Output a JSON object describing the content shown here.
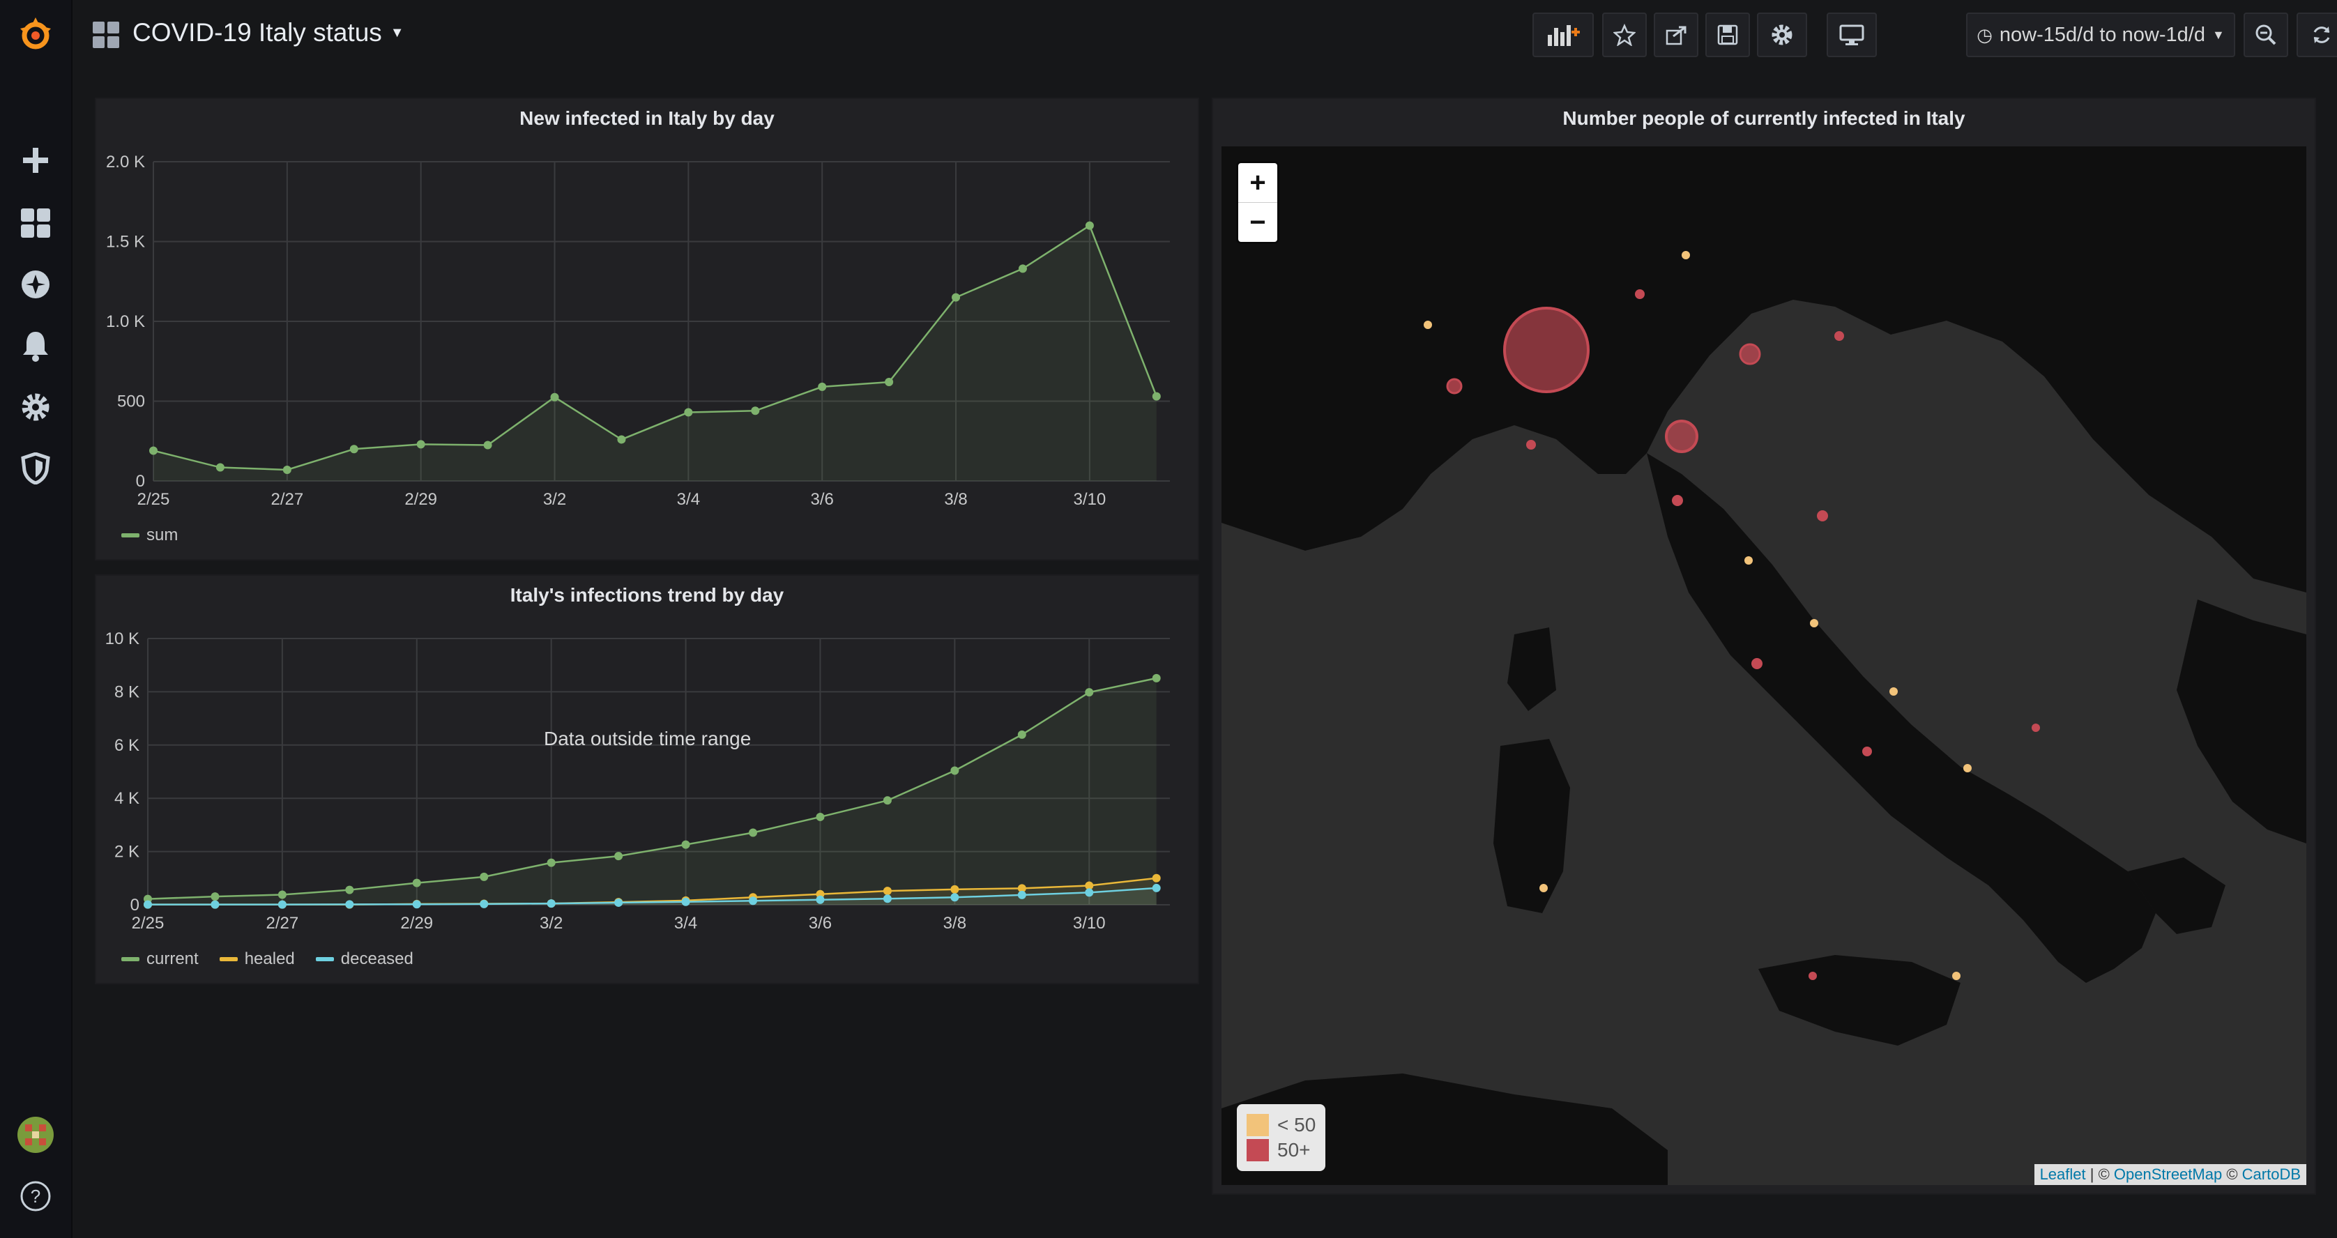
{
  "topbar": {
    "title": "COVID-19 Italy status",
    "time_range": "now-15d/d to now-1d/d"
  },
  "panel_new": {
    "title": "New infected in Italy by day",
    "legend": [
      "sum"
    ]
  },
  "panel_trend": {
    "title": "Italy's infections trend by day",
    "overlay_text": "Data outside time range",
    "legend": [
      "current",
      "healed",
      "deceased"
    ]
  },
  "panel_map": {
    "title": "Number people of currently infected in Italy",
    "zoom_in": "+",
    "zoom_out": "−",
    "legend_low": "< 50",
    "legend_high": "50+",
    "attrib_leaflet": "Leaflet",
    "attrib_sep": " | © ",
    "attrib_osm": "OpenStreetMap",
    "attrib_and": " © ",
    "attrib_carto": "CartoDB",
    "colors": {
      "low": "#f2c37a",
      "high": "#c44a54"
    }
  },
  "chart_data": [
    {
      "type": "area",
      "title": "New infected in Italy by day",
      "x": [
        "2/25",
        "2/26",
        "2/27",
        "2/28",
        "2/29",
        "3/1",
        "3/2",
        "3/3",
        "3/4",
        "3/5",
        "3/6",
        "3/7",
        "3/8",
        "3/9",
        "3/10",
        "3/11"
      ],
      "x_ticks": [
        "2/25",
        "2/27",
        "2/29",
        "3/2",
        "3/4",
        "3/6",
        "3/8",
        "3/10"
      ],
      "y_ticks": [
        "0",
        "500",
        "1.0 K",
        "1.5 K",
        "2.0 K"
      ],
      "ylim": [
        0,
        2000
      ],
      "series": [
        {
          "name": "sum",
          "color": "#7eb26d",
          "values": [
            190,
            85,
            70,
            200,
            230,
            225,
            525,
            260,
            430,
            440,
            590,
            620,
            1150,
            1330,
            1600,
            530
          ]
        }
      ]
    },
    {
      "type": "area",
      "title": "Italy's infections trend by day",
      "x": [
        "2/25",
        "2/26",
        "2/27",
        "2/28",
        "2/29",
        "3/1",
        "3/2",
        "3/3",
        "3/4",
        "3/5",
        "3/6",
        "3/7",
        "3/8",
        "3/9",
        "3/10",
        "3/11"
      ],
      "x_ticks": [
        "2/25",
        "2/27",
        "2/29",
        "3/2",
        "3/4",
        "3/6",
        "3/8",
        "3/10"
      ],
      "y_ticks": [
        "0",
        "2 K",
        "4 K",
        "6 K",
        "8 K",
        "10 K"
      ],
      "ylim": [
        0,
        10000
      ],
      "series": [
        {
          "name": "current",
          "color": "#7eb26d",
          "values": [
            220,
            310,
            380,
            560,
            820,
            1050,
            1580,
            1830,
            2260,
            2710,
            3300,
            3920,
            5040,
            6390,
            7980,
            8510
          ]
        },
        {
          "name": "healed",
          "color": "#eab839",
          "values": [
            10,
            10,
            10,
            10,
            30,
            40,
            50,
            100,
            160,
            280,
            400,
            520,
            580,
            620,
            720,
            1000
          ]
        },
        {
          "name": "deceased",
          "color": "#6ed0e0",
          "values": [
            10,
            10,
            10,
            15,
            20,
            30,
            50,
            80,
            110,
            150,
            190,
            230,
            280,
            370,
            460,
            630
          ]
        }
      ]
    }
  ]
}
